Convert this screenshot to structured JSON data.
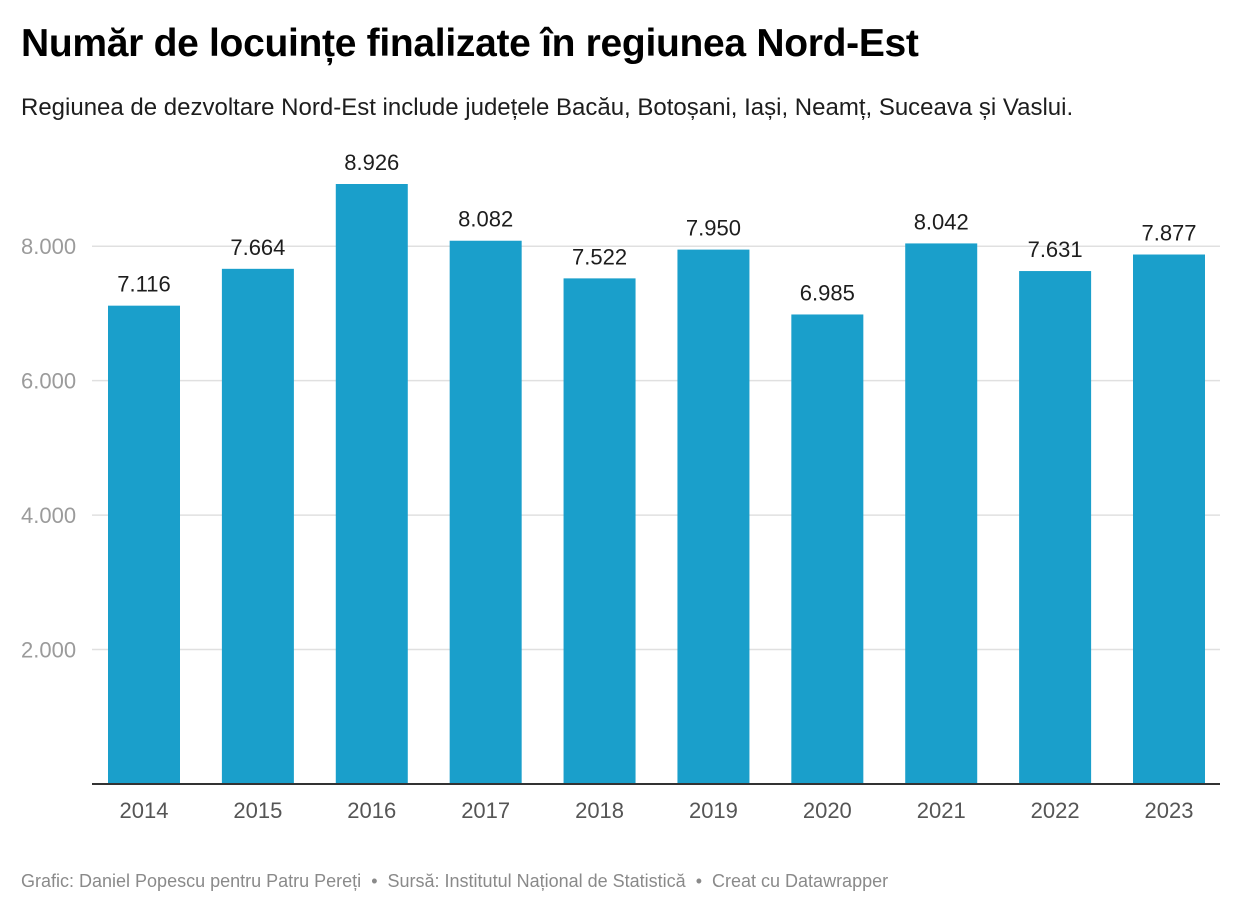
{
  "title": "Număr de locuințe finalizate în regiunea Nord-Est",
  "subtitle": "Regiunea de dezvoltare Nord-Est include județele Bacău, Botoșani, Iași, Neamț, Suceava și Vaslui.",
  "footer": {
    "credit": "Grafic: Daniel Popescu pentru Patru Pereți",
    "separator": "•",
    "source": "Sursă: Institutul Național de Statistică",
    "tool": "Creat cu Datawrapper"
  },
  "colors": {
    "bar": "#1a9fcb",
    "gridline": "#e0e0e0",
    "axis_line": "#333333",
    "tick_label": "#9b9b9b",
    "x_label": "#555555",
    "value_label": "#1d1d1d"
  },
  "chart_data": {
    "type": "bar",
    "categories": [
      "2014",
      "2015",
      "2016",
      "2017",
      "2018",
      "2019",
      "2020",
      "2021",
      "2022",
      "2023"
    ],
    "values": [
      7116,
      7664,
      8926,
      8082,
      7522,
      7950,
      6985,
      8042,
      7631,
      7877
    ],
    "value_labels": [
      "7.116",
      "7.664",
      "8.926",
      "8.082",
      "7.522",
      "7.950",
      "6.985",
      "8.042",
      "7.631",
      "7.877"
    ],
    "ylim": [
      0,
      8926
    ],
    "yticks": [
      2000,
      4000,
      6000,
      8000
    ],
    "ytick_labels": [
      "2.000",
      "4.000",
      "6.000",
      "8.000"
    ],
    "grid": true,
    "legend": "none"
  }
}
